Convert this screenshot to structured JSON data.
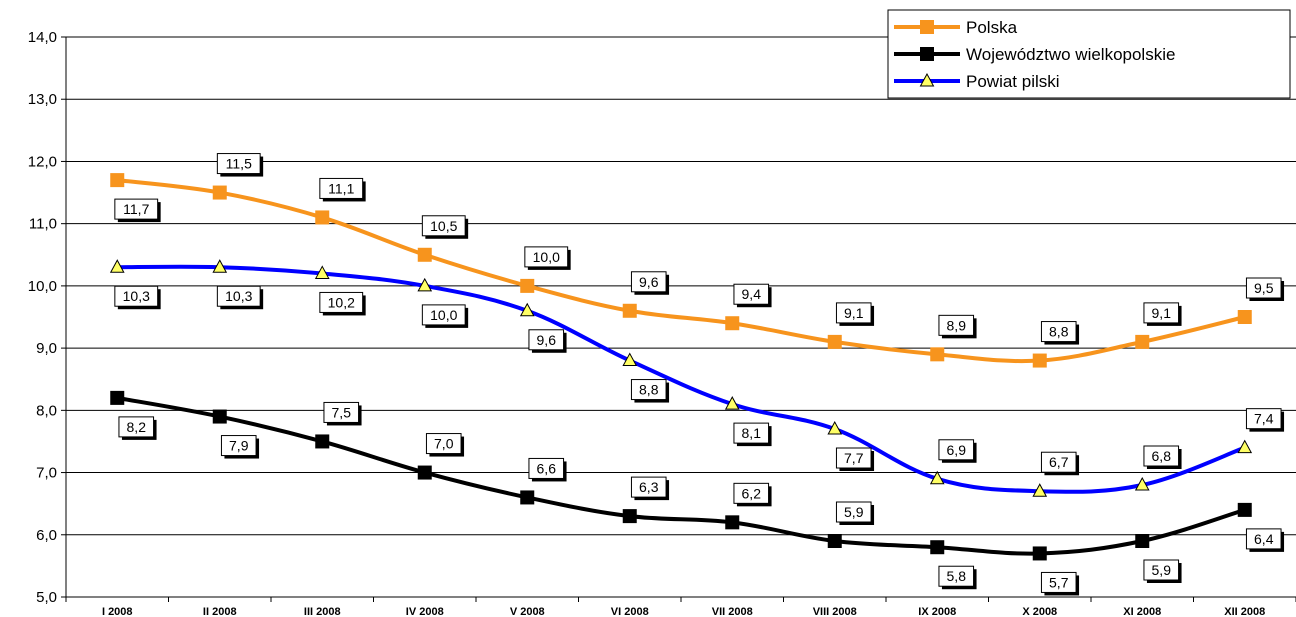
{
  "chart_data": {
    "type": "line",
    "categories": [
      "I 2008",
      "II 2008",
      "III 2008",
      "IV 2008",
      "V 2008",
      "VI 2008",
      "VII 2008",
      "VIII 2008",
      "IX 2008",
      "X 2008",
      "XI 2008",
      "XII 2008"
    ],
    "ylim": [
      5.0,
      14.0
    ],
    "yticks": [
      "5,0",
      "6,0",
      "7,0",
      "8,0",
      "9,0",
      "10,0",
      "11,0",
      "12,0",
      "13,0",
      "14,0"
    ],
    "grid": true,
    "legend_position": "top-right",
    "series": [
      {
        "name": "Polska",
        "color": "#F7941D",
        "marker": "square",
        "values": [
          11.7,
          11.5,
          11.1,
          10.5,
          10.0,
          9.6,
          9.4,
          9.1,
          8.9,
          8.8,
          9.1,
          9.5
        ],
        "labels": [
          "11,7",
          "11,5",
          "11,1",
          "10,5",
          "10,0",
          "9,6",
          "9,4",
          "9,1",
          "8,9",
          "8,8",
          "9,1",
          "9,5"
        ]
      },
      {
        "name": "Województwo wielkopolskie",
        "color": "#000000",
        "marker": "square",
        "values": [
          8.2,
          7.9,
          7.5,
          7.0,
          6.6,
          6.3,
          6.2,
          5.9,
          5.8,
          5.7,
          5.9,
          6.4
        ],
        "labels": [
          "8,2",
          "7,9",
          "7,5",
          "7,0",
          "6,6",
          "6,3",
          "6,2",
          "5,9",
          "5,8",
          "5,7",
          "5,9",
          "6,4"
        ]
      },
      {
        "name": "Powiat pilski",
        "color": "#0000FF",
        "marker": "triangle",
        "marker_fill": "#FFFF66",
        "values": [
          10.3,
          10.3,
          10.2,
          10.0,
          9.6,
          8.8,
          8.1,
          7.7,
          6.9,
          6.7,
          6.8,
          7.4
        ],
        "labels": [
          "10,3",
          "10,3",
          "10,2",
          "10,0",
          "9,6",
          "8,8",
          "8,1",
          "7,7",
          "6,9",
          "6,7",
          "6,8",
          "7,4"
        ]
      }
    ]
  }
}
